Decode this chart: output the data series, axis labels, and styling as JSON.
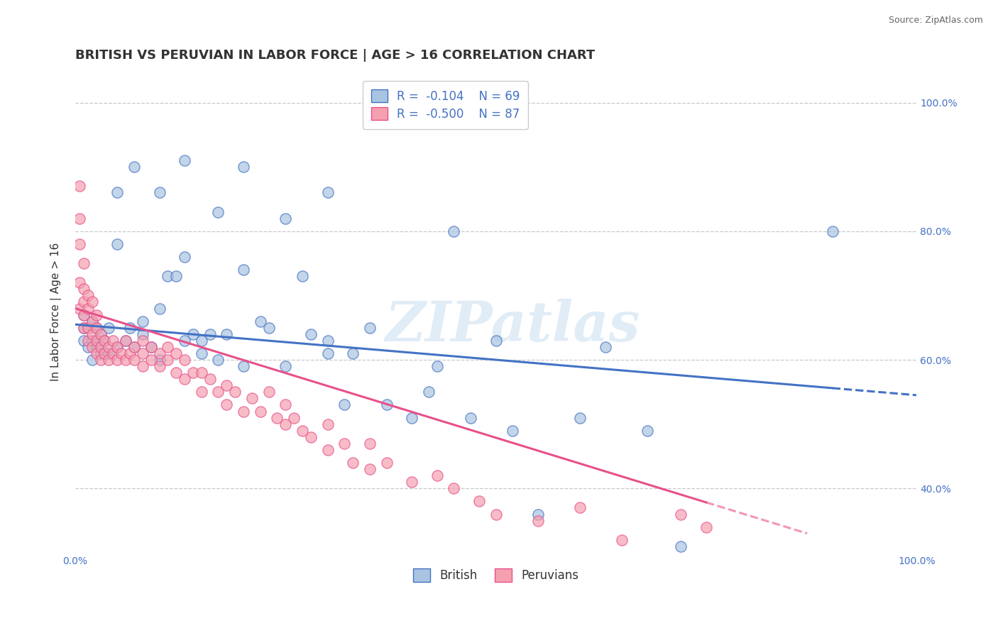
{
  "title": "BRITISH VS PERUVIAN IN LABOR FORCE | AGE > 16 CORRELATION CHART",
  "source_text": "Source: ZipAtlas.com",
  "ylabel": "In Labor Force | Age > 16",
  "xlim": [
    0.0,
    1.0
  ],
  "ylim": [
    0.3,
    1.05
  ],
  "x_ticks": [
    0.0,
    0.2,
    0.4,
    0.6,
    0.8,
    1.0
  ],
  "x_tick_labels": [
    "0.0%",
    "",
    "",
    "",
    "",
    "100.0%"
  ],
  "y_ticks": [
    0.4,
    0.6,
    0.8,
    1.0
  ],
  "y_tick_labels_right": [
    "40.0%",
    "60.0%",
    "80.0%",
    "100.0%"
  ],
  "legend_labels": [
    "British",
    "Peruvians"
  ],
  "british_color": "#a8c4e0",
  "peruvian_color": "#f4a0b0",
  "british_line_color": "#4472c4",
  "peruvian_line_color": "#e8508a",
  "british_R": -0.104,
  "british_N": 69,
  "peruvian_R": -0.5,
  "peruvian_N": 87,
  "watermark": "ZIPatlas",
  "title_fontsize": 13,
  "axis_label_fontsize": 11,
  "tick_fontsize": 10,
  "brit_line_x0": 0.0,
  "brit_line_y0": 0.655,
  "brit_line_x1": 1.0,
  "brit_line_y1": 0.545,
  "peru_line_x0": 0.0,
  "peru_line_y0": 0.68,
  "peru_line_x1": 0.87,
  "peru_line_y1": 0.33,
  "british_scatter_x": [
    0.01,
    0.01,
    0.01,
    0.015,
    0.015,
    0.02,
    0.02,
    0.02,
    0.025,
    0.025,
    0.03,
    0.03,
    0.035,
    0.04,
    0.04,
    0.05,
    0.05,
    0.06,
    0.065,
    0.07,
    0.08,
    0.08,
    0.09,
    0.1,
    0.1,
    0.11,
    0.12,
    0.13,
    0.13,
    0.14,
    0.15,
    0.15,
    0.16,
    0.17,
    0.18,
    0.2,
    0.2,
    0.22,
    0.23,
    0.25,
    0.25,
    0.27,
    0.28,
    0.3,
    0.3,
    0.32,
    0.33,
    0.35,
    0.37,
    0.4,
    0.42,
    0.43,
    0.45,
    0.47,
    0.5,
    0.52,
    0.55,
    0.6,
    0.63,
    0.68,
    0.72,
    0.3,
    0.2,
    0.17,
    0.13,
    0.1,
    0.07,
    0.05,
    0.9
  ],
  "british_scatter_y": [
    0.63,
    0.65,
    0.67,
    0.62,
    0.65,
    0.6,
    0.63,
    0.66,
    0.62,
    0.65,
    0.61,
    0.64,
    0.63,
    0.61,
    0.65,
    0.62,
    0.78,
    0.63,
    0.65,
    0.62,
    0.64,
    0.66,
    0.62,
    0.6,
    0.68,
    0.73,
    0.73,
    0.63,
    0.76,
    0.64,
    0.61,
    0.63,
    0.64,
    0.6,
    0.64,
    0.74,
    0.59,
    0.66,
    0.65,
    0.82,
    0.59,
    0.73,
    0.64,
    0.63,
    0.61,
    0.53,
    0.61,
    0.65,
    0.53,
    0.51,
    0.55,
    0.59,
    0.8,
    0.51,
    0.63,
    0.49,
    0.36,
    0.51,
    0.62,
    0.49,
    0.31,
    0.86,
    0.9,
    0.83,
    0.91,
    0.86,
    0.9,
    0.86,
    0.8
  ],
  "peruvian_scatter_x": [
    0.005,
    0.005,
    0.005,
    0.01,
    0.01,
    0.01,
    0.01,
    0.01,
    0.015,
    0.015,
    0.015,
    0.015,
    0.02,
    0.02,
    0.02,
    0.02,
    0.025,
    0.025,
    0.025,
    0.025,
    0.03,
    0.03,
    0.03,
    0.035,
    0.035,
    0.04,
    0.04,
    0.045,
    0.045,
    0.05,
    0.05,
    0.055,
    0.06,
    0.06,
    0.065,
    0.07,
    0.07,
    0.08,
    0.08,
    0.08,
    0.09,
    0.09,
    0.1,
    0.1,
    0.11,
    0.11,
    0.12,
    0.12,
    0.13,
    0.13,
    0.14,
    0.15,
    0.15,
    0.16,
    0.17,
    0.18,
    0.18,
    0.19,
    0.2,
    0.21,
    0.22,
    0.23,
    0.24,
    0.25,
    0.25,
    0.26,
    0.27,
    0.28,
    0.3,
    0.3,
    0.32,
    0.33,
    0.35,
    0.35,
    0.37,
    0.4,
    0.43,
    0.45,
    0.48,
    0.5,
    0.55,
    0.6,
    0.65,
    0.72,
    0.75,
    0.005,
    0.005
  ],
  "peruvian_scatter_y": [
    0.68,
    0.72,
    0.87,
    0.65,
    0.67,
    0.69,
    0.71,
    0.75,
    0.63,
    0.65,
    0.68,
    0.7,
    0.62,
    0.64,
    0.66,
    0.69,
    0.61,
    0.63,
    0.65,
    0.67,
    0.6,
    0.62,
    0.64,
    0.61,
    0.63,
    0.6,
    0.62,
    0.61,
    0.63,
    0.6,
    0.62,
    0.61,
    0.6,
    0.63,
    0.61,
    0.6,
    0.62,
    0.59,
    0.61,
    0.63,
    0.6,
    0.62,
    0.59,
    0.61,
    0.6,
    0.62,
    0.58,
    0.61,
    0.57,
    0.6,
    0.58,
    0.55,
    0.58,
    0.57,
    0.55,
    0.53,
    0.56,
    0.55,
    0.52,
    0.54,
    0.52,
    0.55,
    0.51,
    0.5,
    0.53,
    0.51,
    0.49,
    0.48,
    0.46,
    0.5,
    0.47,
    0.44,
    0.43,
    0.47,
    0.44,
    0.41,
    0.42,
    0.4,
    0.38,
    0.36,
    0.35,
    0.37,
    0.32,
    0.36,
    0.34,
    0.78,
    0.82
  ]
}
